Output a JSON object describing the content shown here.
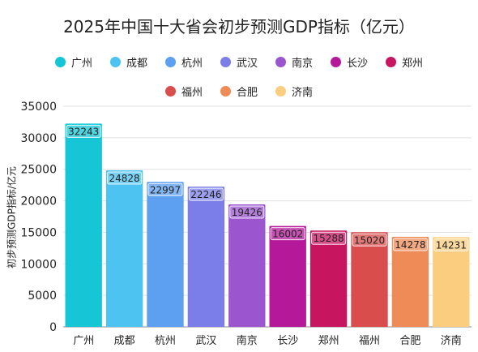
{
  "chart_data": {
    "type": "bar",
    "title": "2025年中国十大省会初步预测GDP指标（亿元）",
    "xlabel": "",
    "ylabel": "初步预测GDP指标/亿元",
    "ylim": [
      0,
      35000
    ],
    "yticks": [
      0,
      5000,
      10000,
      15000,
      20000,
      25000,
      30000,
      35000
    ],
    "grid": true,
    "legend_position": "top",
    "categories": [
      "广州",
      "成都",
      "杭州",
      "武汉",
      "南京",
      "长沙",
      "郑州",
      "福州",
      "合肥",
      "济南"
    ],
    "values": [
      32243,
      24828,
      22997,
      22246,
      19426,
      16002,
      15288,
      15020,
      14278,
      14231
    ],
    "colors": [
      "#16c6d6",
      "#4cc3f0",
      "#5d9ff0",
      "#7b7ee8",
      "#9a55cf",
      "#b5199a",
      "#c71560",
      "#d94d4d",
      "#ee8b56",
      "#fbcd7e"
    ]
  }
}
